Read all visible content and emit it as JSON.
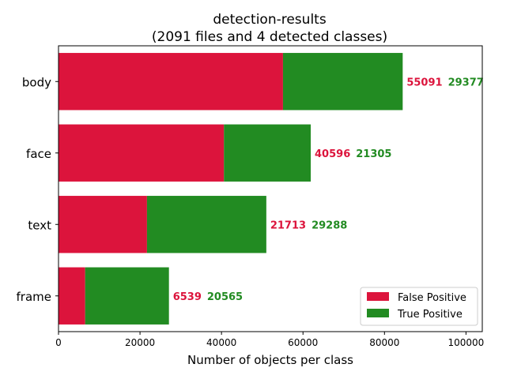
{
  "chart_data": {
    "type": "bar",
    "orientation": "horizontal",
    "stacked": true,
    "title": "detection-results",
    "subtitle": "(2091 files and 4 detected classes)",
    "xlabel": "Number of objects per class",
    "ylabel": "",
    "xlim": [
      0,
      104000
    ],
    "xticks": [
      0,
      20000,
      40000,
      60000,
      80000,
      100000
    ],
    "xtick_labels": [
      "0",
      "20000",
      "40000",
      "60000",
      "80000",
      "100000"
    ],
    "categories": [
      "body",
      "face",
      "text",
      "frame"
    ],
    "series": [
      {
        "name": "False Positive",
        "color": "#dc143c",
        "values": [
          55091,
          40596,
          21713,
          6539
        ]
      },
      {
        "name": "True Positive",
        "color": "#228b22",
        "values": [
          29377,
          21305,
          29288,
          20565
        ]
      }
    ],
    "grid": false,
    "legend": "lower-right"
  }
}
